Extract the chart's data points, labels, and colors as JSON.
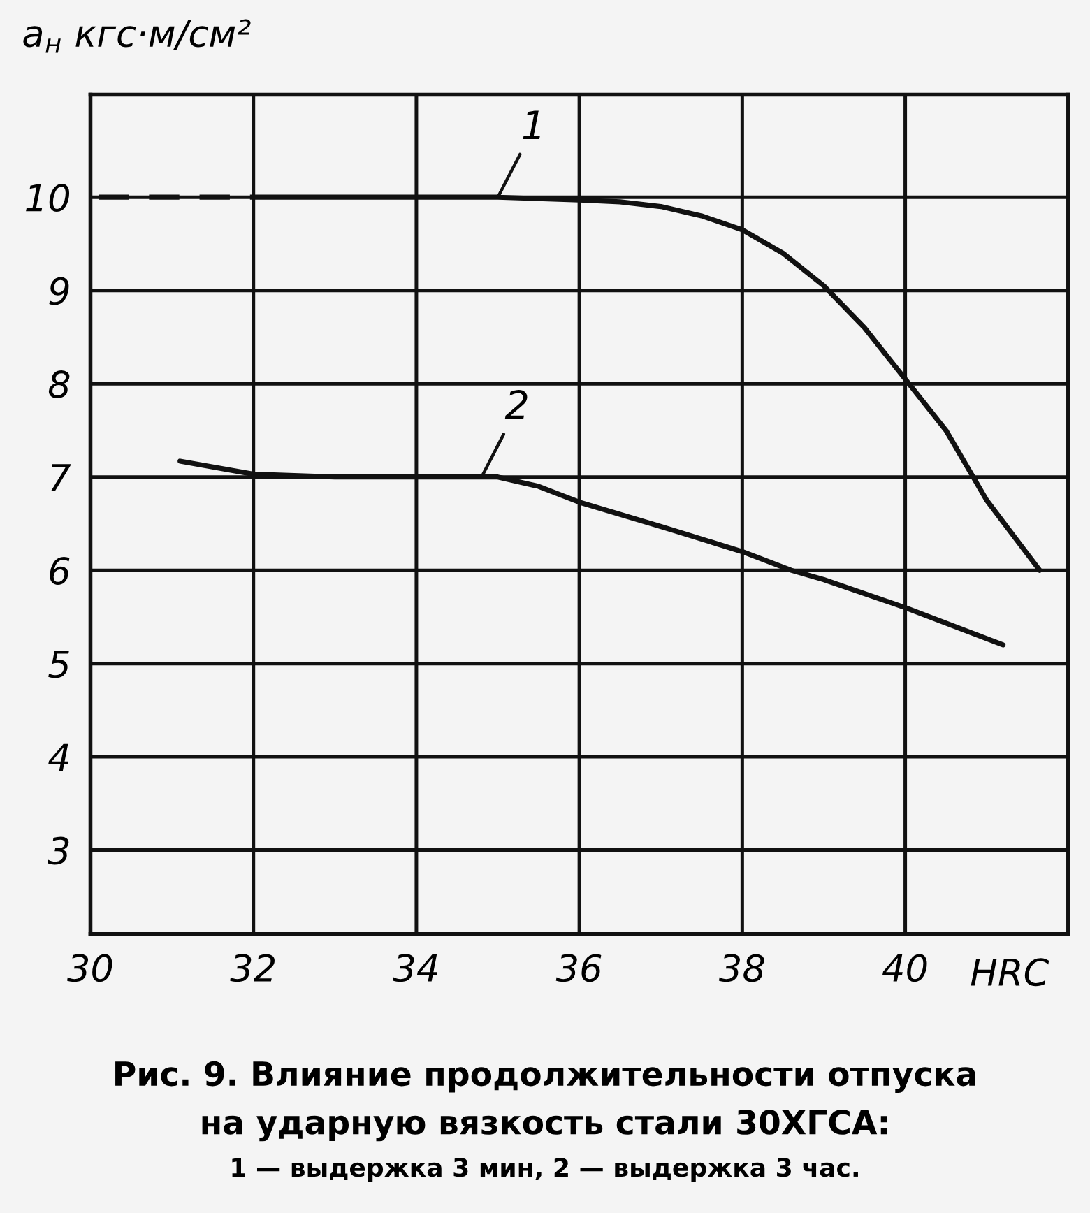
{
  "chart_data": {
    "type": "line",
    "ylabel": "a$_{н}$ кгс·м/см²",
    "xlabel": "HRC",
    "xlim": [
      30,
      42
    ],
    "xticks": [
      30,
      32,
      34,
      36,
      38,
      40
    ],
    "ylim": [
      2.1,
      11.1
    ],
    "yticks": [
      3,
      4,
      5,
      6,
      7,
      8,
      9,
      10
    ],
    "grid": true,
    "marker": "none",
    "series": [
      {
        "color": "#111111",
        "line_style": "dashed",
        "x": [
          30.1,
          32
        ],
        "values": [
          10,
          10
        ]
      },
      {
        "color": "#111111",
        "line_style": "solid",
        "x": [
          32,
          34,
          35,
          36,
          36.5,
          37,
          37.5,
          38,
          38.5,
          39,
          39.5,
          40,
          40.5,
          41,
          41.65
        ],
        "values": [
          10,
          10,
          10,
          9.97,
          9.95,
          9.9,
          9.8,
          9.65,
          9.4,
          9.05,
          8.6,
          8.05,
          7.5,
          6.75,
          6.0
        ]
      },
      {
        "color": "#111111",
        "line_style": "solid",
        "x": [
          31.1,
          32,
          33,
          34,
          35,
          35.5,
          36,
          37,
          38,
          38.6,
          39,
          40,
          41.2
        ],
        "values": [
          7.17,
          7.03,
          7.0,
          7.0,
          7.0,
          6.9,
          6.73,
          6.47,
          6.2,
          6.0,
          5.9,
          5.6,
          5.2
        ]
      }
    ],
    "annotations": [
      {
        "text": "1",
        "x": 35,
        "y": 10
      },
      {
        "text": "2",
        "x": 34.8,
        "y": 7.0
      },
      "Рис. 9. Влияние продолжительности отпуска",
      "на ударную вязкость стали 30ХГСА:",
      "1 — выдержка 3 мин, 2 — выдержка 3 час."
    ]
  }
}
